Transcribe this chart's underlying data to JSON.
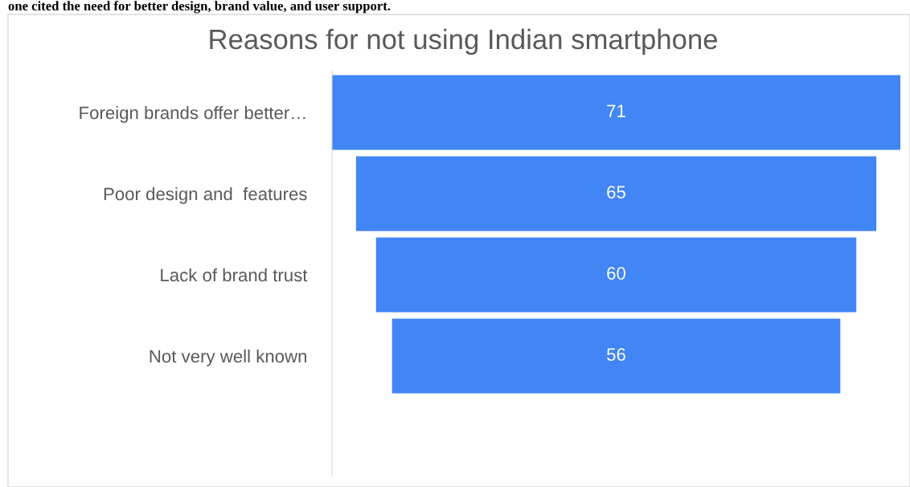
{
  "chart_data": {
    "type": "other",
    "title": "Reasons for not using Indian smartphone",
    "annotations": [
      "one cited the need for better design, brand value, and user support."
    ],
    "categories": [
      "Foreign brands offer better…",
      "Poor design and  features",
      "Lack of brand trust",
      "Not very well known"
    ],
    "values": [
      71,
      65,
      60,
      56
    ],
    "color": "#4285f4",
    "data_labels": true
  }
}
